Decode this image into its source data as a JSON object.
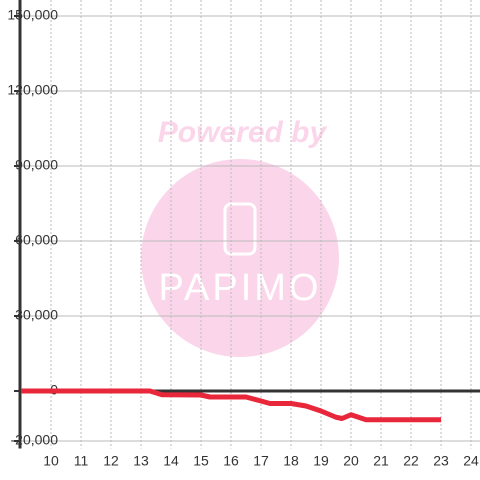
{
  "chart_data": {
    "type": "line",
    "x": [
      9,
      13.3,
      13.7,
      15,
      15.3,
      16.5,
      17,
      17.3,
      18,
      18.5,
      19,
      19.5,
      19.7,
      20,
      20.5,
      21,
      23
    ],
    "series": [
      {
        "color": "#e8273a",
        "values": [
          0,
          0,
          -1500,
          -1600,
          -2400,
          -2400,
          -4000,
          -5000,
          -5000,
          -6000,
          -8000,
          -10500,
          -11000,
          -9500,
          -11500,
          -11500,
          -11500
        ]
      }
    ],
    "xlim": [
      9,
      24.3
    ],
    "xticks": [
      10,
      11,
      12,
      13,
      14,
      15,
      16,
      17,
      18,
      19,
      20,
      21,
      22,
      23,
      24
    ],
    "ylim": [
      -23000,
      150000
    ],
    "yticks": [
      {
        "value": -20000,
        "label": "-20,000"
      },
      0,
      {
        "value": 30000,
        "label": "30,000"
      },
      {
        "value": 60000,
        "label": "60,000"
      },
      {
        "value": 90000,
        "label": "90,000"
      },
      {
        "value": 120000,
        "label": "120,000"
      },
      {
        "value": 150000,
        "label": "150,000"
      }
    ],
    "grid": true,
    "watermark": {
      "text": "Powered by",
      "logo": "PAPIMO"
    }
  }
}
